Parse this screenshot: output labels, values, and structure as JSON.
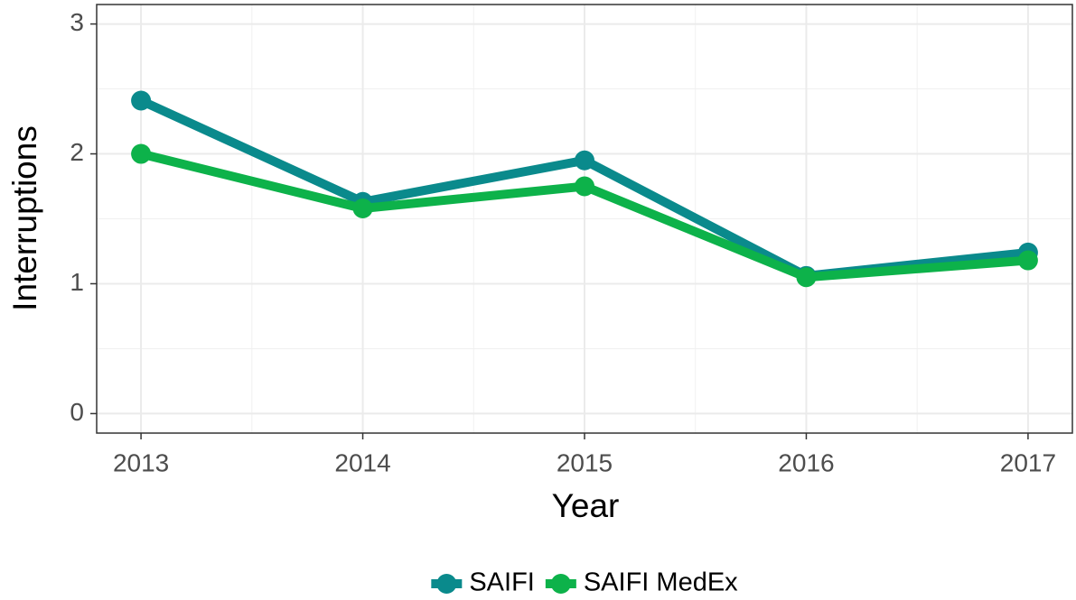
{
  "chart_data": {
    "type": "line",
    "x_label": "Year",
    "y_label": "Interruptions",
    "x": [
      2013,
      2014,
      2015,
      2016,
      2017
    ],
    "series": [
      {
        "name": "SAIFI",
        "color": "#0a8a8c",
        "values": [
          2.41,
          1.63,
          1.95,
          1.06,
          1.24
        ]
      },
      {
        "name": "SAIFI MedEx",
        "color": "#0db24a",
        "values": [
          2.0,
          1.58,
          1.75,
          1.05,
          1.18
        ]
      }
    ],
    "xlim": [
      2012.8,
      2017.2
    ],
    "xticks": [
      2013,
      2014,
      2015,
      2016,
      2017
    ],
    "ylim": [
      -0.15,
      3.15
    ],
    "yticks": [
      0,
      1,
      2,
      3
    ],
    "grid": true,
    "legend": "bottom"
  }
}
